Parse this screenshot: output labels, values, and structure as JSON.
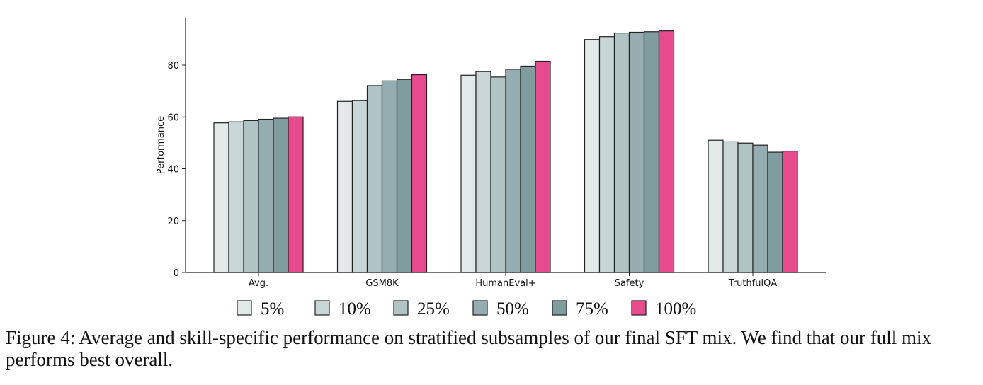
{
  "chart_data": {
    "type": "bar",
    "ylabel": "Performance",
    "xlabel": "",
    "ylim": [
      0,
      98
    ],
    "yticks": [
      0,
      20,
      40,
      60,
      80
    ],
    "categories": [
      "Avg.",
      "GSM8K",
      "HumanEval+",
      "Safety",
      "TruthfulQA"
    ],
    "legend_position": "bottom",
    "grid": false,
    "series": [
      {
        "name": "5%",
        "color": "#e2eae9",
        "values": [
          57.7,
          66.0,
          76.1,
          89.9,
          51.0
        ]
      },
      {
        "name": "10%",
        "color": "#c8d6d8",
        "values": [
          58.1,
          66.3,
          77.5,
          91.0,
          50.4
        ]
      },
      {
        "name": "25%",
        "color": "#b0c4c5",
        "values": [
          58.6,
          72.1,
          75.4,
          92.4,
          49.9
        ]
      },
      {
        "name": "50%",
        "color": "#95adb0",
        "values": [
          59.1,
          73.9,
          78.4,
          92.7,
          49.1
        ]
      },
      {
        "name": "75%",
        "color": "#7f9c9e",
        "values": [
          59.5,
          74.5,
          79.6,
          92.9,
          46.4
        ]
      },
      {
        "name": "100%",
        "color": "#e84a8e",
        "values": [
          60.0,
          76.3,
          81.5,
          93.2,
          46.8
        ]
      }
    ]
  },
  "caption": "Figure 4: Average and skill-specific performance on stratified subsamples of our final SFT mix. We find that our full mix performs best overall."
}
